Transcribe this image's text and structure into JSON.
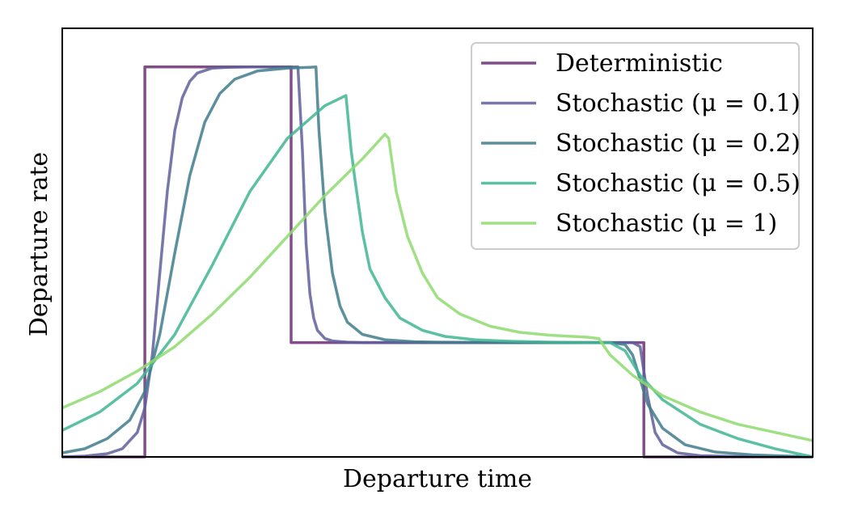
{
  "chart_data": {
    "type": "line",
    "title": "",
    "xlabel": "Departure time",
    "ylabel": "Departure rate",
    "xlim": [
      0,
      10
    ],
    "ylim": [
      0,
      1.0
    ],
    "grid": false,
    "ticks": false,
    "legend_placement": "top-right",
    "series": [
      {
        "name": "Deterministic",
        "color": "#6b2f74",
        "x": [
          0.0,
          1.1,
          1.1,
          3.05,
          3.05,
          7.75,
          7.75,
          10.0
        ],
        "y": [
          0.0,
          0.0,
          0.955,
          0.955,
          0.28,
          0.28,
          0.0,
          0.0
        ]
      },
      {
        "name": "Stochastic (μ = 0.1)",
        "color": "#5f5f9b",
        "x": [
          0.0,
          0.3,
          0.6,
          0.8,
          1.0,
          1.1,
          1.2,
          1.3,
          1.4,
          1.5,
          1.6,
          1.7,
          1.8,
          2.0,
          2.2,
          2.5,
          3.0,
          3.14,
          3.2,
          3.25,
          3.3,
          3.35,
          3.4,
          3.5,
          3.6,
          3.8,
          4.0,
          5.0,
          6.0,
          7.0,
          7.6,
          7.7,
          7.8,
          7.9,
          8.0,
          8.2,
          8.5,
          9.0,
          10.0
        ],
        "y": [
          0.0,
          0.002,
          0.008,
          0.02,
          0.06,
          0.12,
          0.25,
          0.45,
          0.65,
          0.8,
          0.88,
          0.92,
          0.94,
          0.952,
          0.954,
          0.955,
          0.955,
          0.955,
          0.75,
          0.52,
          0.4,
          0.34,
          0.31,
          0.29,
          0.284,
          0.281,
          0.28,
          0.28,
          0.28,
          0.28,
          0.28,
          0.27,
          0.15,
          0.06,
          0.03,
          0.01,
          0.003,
          0.001,
          0.0
        ]
      },
      {
        "name": "Stochastic (μ = 0.2)",
        "color": "#3f7c8c",
        "x": [
          0.0,
          0.3,
          0.6,
          0.9,
          1.1,
          1.3,
          1.5,
          1.7,
          1.9,
          2.1,
          2.3,
          2.6,
          3.0,
          3.3,
          3.38,
          3.42,
          3.5,
          3.6,
          3.7,
          3.8,
          4.0,
          4.3,
          4.7,
          5.0,
          6.0,
          7.0,
          7.3,
          7.5,
          7.6,
          7.7,
          7.8,
          8.0,
          8.3,
          8.7,
          9.2,
          10.0
        ],
        "y": [
          0.01,
          0.02,
          0.045,
          0.09,
          0.16,
          0.3,
          0.5,
          0.69,
          0.82,
          0.89,
          0.925,
          0.945,
          0.952,
          0.954,
          0.955,
          0.8,
          0.6,
          0.45,
          0.37,
          0.33,
          0.3,
          0.287,
          0.282,
          0.281,
          0.28,
          0.28,
          0.28,
          0.275,
          0.25,
          0.19,
          0.13,
          0.07,
          0.03,
          0.012,
          0.005,
          0.0
        ]
      },
      {
        "name": "Stochastic (μ = 0.5)",
        "color": "#3fb593",
        "x": [
          0.0,
          0.5,
          1.0,
          1.5,
          2.0,
          2.5,
          3.0,
          3.5,
          3.78,
          3.85,
          3.9,
          4.0,
          4.1,
          4.3,
          4.5,
          4.8,
          5.1,
          5.5,
          6.0,
          6.5,
          7.0,
          7.3,
          7.5,
          7.7,
          8.0,
          8.5,
          9.0,
          9.5,
          10.0
        ],
        "y": [
          0.065,
          0.11,
          0.18,
          0.3,
          0.47,
          0.65,
          0.78,
          0.86,
          0.885,
          0.75,
          0.68,
          0.55,
          0.46,
          0.39,
          0.34,
          0.31,
          0.295,
          0.287,
          0.283,
          0.281,
          0.28,
          0.28,
          0.26,
          0.2,
          0.14,
          0.08,
          0.045,
          0.02,
          0.0
        ]
      },
      {
        "name": "Stochastic (μ = 1)",
        "color": "#8fda6e",
        "x": [
          0.0,
          0.5,
          1.0,
          1.5,
          2.0,
          2.5,
          3.0,
          3.5,
          4.0,
          4.3,
          4.35,
          4.45,
          4.6,
          4.8,
          5.0,
          5.3,
          5.7,
          6.1,
          6.5,
          7.0,
          7.15,
          7.3,
          7.6,
          8.0,
          8.5,
          9.0,
          9.5,
          10.0
        ],
        "y": [
          0.12,
          0.16,
          0.21,
          0.27,
          0.35,
          0.44,
          0.54,
          0.64,
          0.73,
          0.79,
          0.78,
          0.65,
          0.54,
          0.45,
          0.39,
          0.35,
          0.32,
          0.305,
          0.298,
          0.293,
          0.29,
          0.25,
          0.2,
          0.15,
          0.11,
          0.08,
          0.06,
          0.04
        ]
      }
    ]
  }
}
